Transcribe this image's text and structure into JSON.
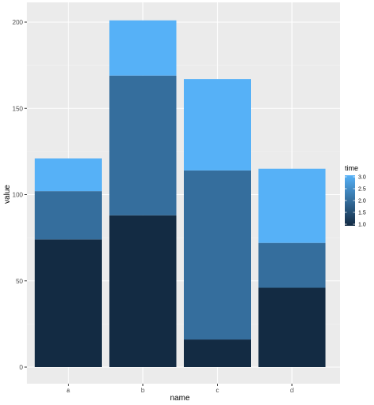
{
  "chart_data": {
    "type": "bar",
    "stacked": true,
    "categories": [
      "a",
      "b",
      "c",
      "d"
    ],
    "stacks": [
      {
        "category": "a",
        "segments": [
          {
            "time": 1,
            "from": 0,
            "to": 74
          },
          {
            "time": 2,
            "from": 74,
            "to": 102
          },
          {
            "time": 3,
            "from": 102,
            "to": 121
          }
        ]
      },
      {
        "category": "b",
        "segments": [
          {
            "time": 1,
            "from": 0,
            "to": 88
          },
          {
            "time": 2,
            "from": 88,
            "to": 169
          },
          {
            "time": 3,
            "from": 169,
            "to": 201
          }
        ]
      },
      {
        "category": "c",
        "segments": [
          {
            "time": 1,
            "from": 0,
            "to": 16
          },
          {
            "time": 2,
            "from": 16,
            "to": 114
          },
          {
            "time": 3,
            "from": 114,
            "to": 167
          }
        ]
      },
      {
        "category": "d",
        "segments": [
          {
            "time": 1,
            "from": 0,
            "to": 46
          },
          {
            "time": 2,
            "from": 46,
            "to": 72
          },
          {
            "time": 3,
            "from": 72,
            "to": 115
          }
        ]
      }
    ],
    "xlabel": "name",
    "ylabel": "value",
    "ylim": [
      0,
      210
    ],
    "yticks": [
      0,
      50,
      100,
      150,
      200
    ],
    "grid": true,
    "legend": {
      "title": "time",
      "position": "right",
      "type": "colorbar",
      "range": [
        1.0,
        3.0
      ],
      "ticks": [
        "3.0",
        "2.5",
        "2.0",
        "1.5",
        "1.0"
      ],
      "color_low": "#132B43",
      "color_high": "#56B1F7"
    },
    "colors": {
      "panel": "#EBEBEB",
      "grid_major": "#FFFFFF",
      "grid_minor": "#F5F5F5"
    }
  }
}
